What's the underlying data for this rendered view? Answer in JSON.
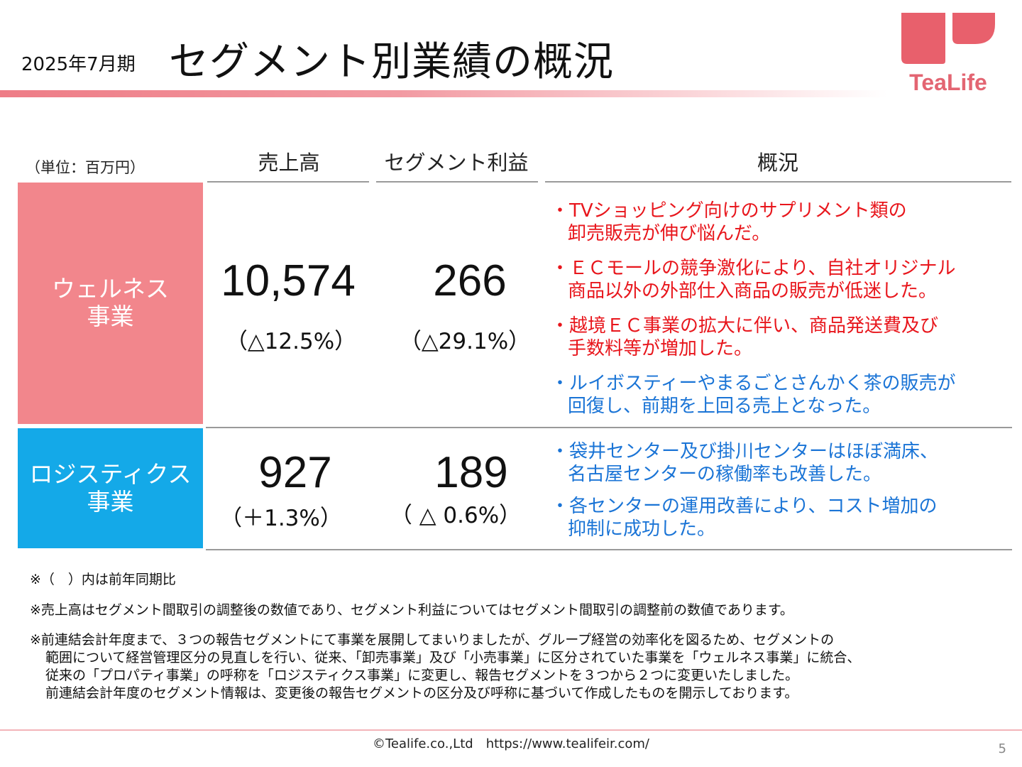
{
  "header": {
    "period": "2025年7月期",
    "title": "セグメント別業績の概況"
  },
  "logo": {
    "text": "TeaLife",
    "color": "#e36572"
  },
  "table": {
    "unit": "（単位：百万円）",
    "columns": {
      "sales": "売上高",
      "profit": "セグメント利益",
      "overview": "概況"
    },
    "segments": [
      {
        "name_line1": "ウェルネス",
        "name_line2": "事業",
        "color": "#f2868c",
        "sales": "10,574",
        "sales_change": "（△12.5%）",
        "profit": "266",
        "profit_change": "（△29.1%）",
        "bullets": [
          {
            "line1": "・TVショッピング向けのサプリメント類の",
            "line2": "卸売販売が伸び悩んだ。",
            "color": "red"
          },
          {
            "line1": "・ＥＣモールの競争激化により、自社オリジナル",
            "line2": "商品以外の外部仕入商品の販売が低迷した。",
            "color": "red"
          },
          {
            "line1": "・越境ＥＣ事業の拡大に伴い、商品発送費及び",
            "line2": "手数料等が増加した。",
            "color": "red"
          },
          {
            "line1": "・ルイボスティーやまるごとさんかく茶の販売が",
            "line2": "回復し、前期を上回る売上となった。",
            "color": "blue"
          }
        ]
      },
      {
        "name_line1": "ロジスティクス",
        "name_line2": "事業",
        "color": "#14a9e8",
        "sales": "927",
        "sales_change": "（＋1.3%）",
        "profit": "189",
        "profit_change": "（ △ 0.6%）",
        "bullets": [
          {
            "line1": "・袋井センター及び掛川センターはほぼ満床、",
            "line2": "名古屋センターの稼働率も改善した。",
            "color": "blue"
          },
          {
            "line1": "・各センターの運用改善により、コスト増加の",
            "line2": "抑制に成功した。",
            "color": "blue"
          }
        ]
      }
    ]
  },
  "notes": {
    "n1": "※（　）内は前年同期比",
    "n2": "※売上高はセグメント間取引の調整後の数値であり、セグメント利益についてはセグメント間取引の調整前の数値であります。",
    "n3_line1": "※前連結会計年度まで、３つの報告セグメントにて事業を展開してまいりましたが、グループ経営の効率化を図るため、セグメントの",
    "n3_line2": "範囲について経営管理区分の見直しを行い、従来、「卸売事業」及び「小売事業」に区分されていた事業を「ウェルネス事業」に統合、",
    "n3_line3": "従来の「プロパティ事業」の呼称を「ロジスティクス事業」に変更し、報告セグメントを３つから２つに変更いたしました。",
    "n3_line4": "前連結会計年度のセグメント情報は、変更後の報告セグメントの区分及び呼称に基づいて作成したものを開示しております。"
  },
  "footer": {
    "text": "©Tealife.co.,Ltd　https://www.tealifeir.com/",
    "page": "5"
  },
  "colors": {
    "red_text": "#e8161c",
    "blue_text": "#1a74d6",
    "accent_bar": "#ee7c86"
  }
}
